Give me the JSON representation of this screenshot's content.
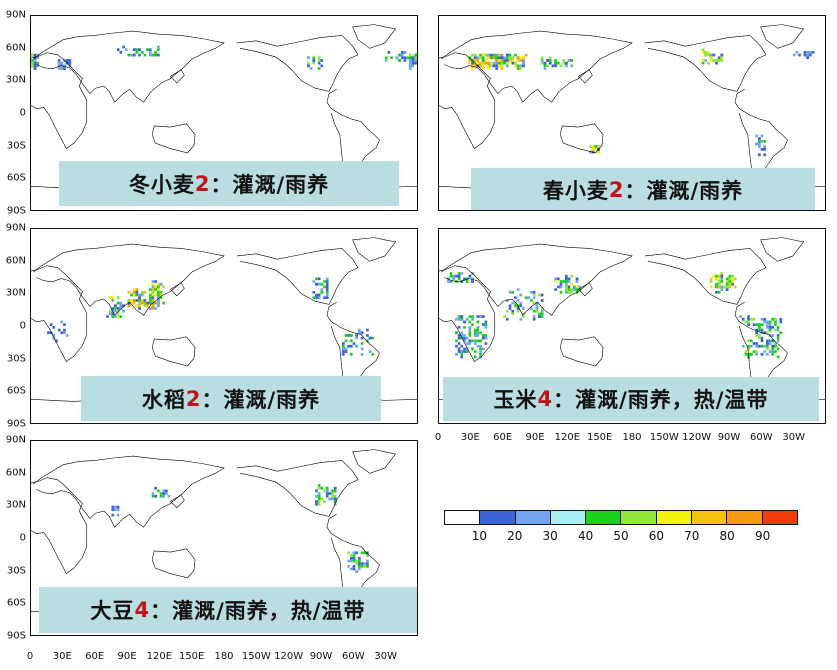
{
  "panels": [
    {
      "id": "winter-wheat",
      "name_prefix": "冬小麦",
      "number": "2",
      "name_suffix": "：灌溉/雨养"
    },
    {
      "id": "spring-wheat",
      "name_prefix": "春小麦",
      "number": "2",
      "name_suffix": "：灌溉/雨养"
    },
    {
      "id": "rice",
      "name_prefix": "水稻",
      "number": "2",
      "name_suffix": "：灌溉/雨养"
    },
    {
      "id": "maize",
      "name_prefix": "玉米",
      "number": "4",
      "name_suffix": "：灌溉/雨养，热/温带"
    },
    {
      "id": "soybean",
      "name_prefix": "大豆",
      "number": "4",
      "name_suffix": "：灌溉/雨养，热/温带"
    }
  ],
  "lat_labels": [
    "90N",
    "60N",
    "30N",
    "0",
    "30S",
    "60S",
    "90S"
  ],
  "lon_labels": [
    "0",
    "30E",
    "60E",
    "90E",
    "120E",
    "150E",
    "180",
    "150W",
    "120W",
    "90W",
    "60W",
    "30W"
  ],
  "colorbar": {
    "labels": [
      "10",
      "20",
      "30",
      "40",
      "50",
      "60",
      "70",
      "80",
      "90"
    ],
    "colors": [
      "#ffffff",
      "#3d63d9",
      "#72a4f0",
      "#a8eef2",
      "#1ad11a",
      "#8fe83a",
      "#f2f20a",
      "#f5c20f",
      "#f59b12",
      "#f03c0a"
    ]
  }
}
